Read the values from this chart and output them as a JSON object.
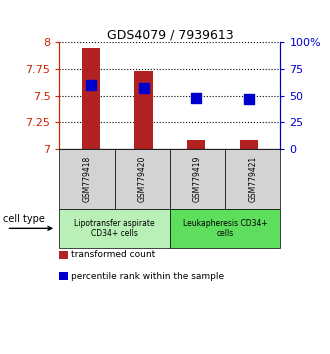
{
  "title": "GDS4079 / 7939613",
  "samples": [
    "GSM779418",
    "GSM779420",
    "GSM779419",
    "GSM779421"
  ],
  "red_values": [
    7.95,
    7.73,
    7.08,
    7.08
  ],
  "blue_values_pct": [
    60,
    57,
    48,
    47
  ],
  "ylim_left": [
    7.0,
    8.0
  ],
  "ylim_right": [
    0,
    100
  ],
  "yticks_left": [
    7.0,
    7.25,
    7.5,
    7.75,
    8.0
  ],
  "yticks_right": [
    0,
    25,
    50,
    75,
    100
  ],
  "ytick_labels_left": [
    "7",
    "7.25",
    "7.5",
    "7.75",
    "8"
  ],
  "ytick_labels_right": [
    "0",
    "25",
    "50",
    "75",
    "100%"
  ],
  "cell_type_groups": [
    {
      "label": "Lipotransfer aspirate\nCD34+ cells",
      "color": "#b8f0b8",
      "samples": [
        "GSM779418",
        "GSM779420"
      ]
    },
    {
      "label": "Leukapheresis CD34+\ncells",
      "color": "#5dde5d",
      "samples": [
        "GSM779419",
        "GSM779421"
      ]
    }
  ],
  "bar_color": "#b22222",
  "dot_color": "#0000cc",
  "bar_width": 0.35,
  "dot_size": 50,
  "legend_items": [
    {
      "color": "#b22222",
      "label": "transformed count"
    },
    {
      "color": "#0000cc",
      "label": "percentile rank within the sample"
    }
  ],
  "cell_type_label": "cell type",
  "background_color": "#ffffff",
  "plot_bg_color": "#ffffff",
  "grid_color": "#000000",
  "left_axis_color": "#cc2200",
  "right_axis_color": "#0000cc",
  "sample_box_color": "#d3d3d3"
}
